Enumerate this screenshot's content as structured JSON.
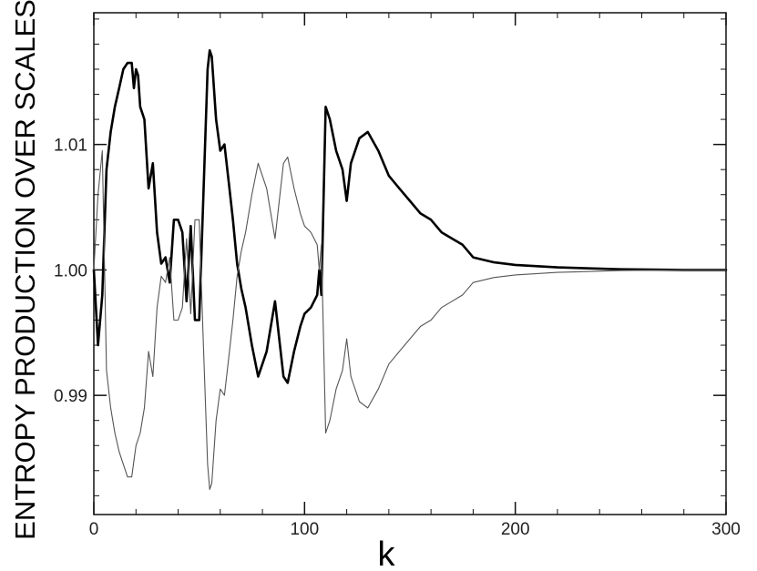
{
  "chart_data": {
    "type": "line",
    "title": "",
    "xlabel": "k",
    "ylabel": "ENTROPY PRODUCTION OVER SCALES",
    "xlim": [
      0,
      300
    ],
    "ylim": [
      0.9805,
      1.0205
    ],
    "x_ticks": [
      0,
      100,
      200,
      300
    ],
    "x_tick_labels": [
      "0",
      "100",
      "200",
      "300"
    ],
    "y_ticks": [
      0.99,
      1.0,
      1.01
    ],
    "y_tick_labels": [
      "0.99",
      "1.00",
      "1.01"
    ],
    "grid": false,
    "legend": "none",
    "series": [
      {
        "style": "thick",
        "color": "#000000",
        "x": [
          0,
          2,
          4,
          6,
          8,
          10,
          12,
          14,
          16,
          18,
          19,
          20,
          21,
          22,
          24,
          26,
          28,
          30,
          32,
          34,
          36,
          38,
          40,
          42,
          44,
          46,
          48,
          50,
          52,
          54,
          55,
          56,
          58,
          60,
          62,
          64,
          66,
          68,
          70,
          72,
          75,
          78,
          82,
          86,
          90,
          92,
          95,
          98,
          100,
          103,
          106,
          107,
          108,
          110,
          112,
          115,
          118,
          120,
          122,
          126,
          130,
          135,
          140,
          145,
          150,
          155,
          160,
          165,
          170,
          175,
          180,
          190,
          200,
          220,
          250,
          280,
          300
        ],
        "y": [
          1.0,
          0.994,
          0.998,
          1.008,
          1.011,
          1.013,
          1.0145,
          1.016,
          1.0165,
          1.0165,
          1.0145,
          1.016,
          1.0155,
          1.013,
          1.012,
          1.0065,
          1.0085,
          1.003,
          1.0005,
          1.001,
          0.999,
          1.004,
          1.004,
          1.003,
          0.9975,
          1.0035,
          0.996,
          0.996,
          1.006,
          1.016,
          1.0175,
          1.017,
          1.012,
          1.0095,
          1.01,
          1.007,
          1.004,
          1.0005,
          0.9985,
          0.997,
          0.994,
          0.9915,
          0.9935,
          0.9975,
          0.9915,
          0.991,
          0.9935,
          0.9955,
          0.9965,
          0.997,
          0.998,
          1.0,
          0.998,
          1.013,
          1.012,
          1.0095,
          1.008,
          1.0055,
          1.0085,
          1.0105,
          1.011,
          1.0095,
          1.0075,
          1.0065,
          1.0055,
          1.0045,
          1.004,
          1.003,
          1.0025,
          1.002,
          1.001,
          1.0006,
          1.0004,
          1.0002,
          1.00005,
          1.0,
          1.0
        ]
      },
      {
        "style": "thin",
        "color": "#555555",
        "x": [
          0,
          2,
          4,
          6,
          8,
          10,
          12,
          14,
          16,
          18,
          20,
          22,
          24,
          26,
          28,
          30,
          32,
          34,
          36,
          38,
          40,
          42,
          44,
          46,
          48,
          50,
          52,
          54,
          55,
          56,
          58,
          60,
          62,
          64,
          66,
          68,
          70,
          72,
          75,
          78,
          82,
          86,
          90,
          92,
          95,
          98,
          100,
          103,
          106,
          107,
          108,
          110,
          112,
          115,
          118,
          120,
          122,
          126,
          130,
          135,
          140,
          145,
          150,
          155,
          160,
          165,
          170,
          175,
          180,
          190,
          200,
          220,
          250,
          280,
          300
        ],
        "y": [
          1.0,
          1.006,
          1.0095,
          0.992,
          0.989,
          0.987,
          0.9855,
          0.9845,
          0.9835,
          0.9835,
          0.986,
          0.987,
          0.989,
          0.9935,
          0.9915,
          0.997,
          0.9995,
          0.999,
          1.001,
          0.996,
          0.996,
          0.997,
          1.0025,
          0.9965,
          1.004,
          1.004,
          0.994,
          0.9845,
          0.9825,
          0.983,
          0.988,
          0.9905,
          0.99,
          0.993,
          0.996,
          0.9995,
          1.0015,
          1.003,
          1.006,
          1.0085,
          1.0065,
          1.0025,
          1.0085,
          1.009,
          1.0065,
          1.0045,
          1.0035,
          1.003,
          1.002,
          1.0,
          1.002,
          0.987,
          0.988,
          0.9905,
          0.992,
          0.9945,
          0.9915,
          0.9895,
          0.989,
          0.9905,
          0.9925,
          0.9935,
          0.9945,
          0.9955,
          0.996,
          0.997,
          0.9975,
          0.998,
          0.999,
          0.9994,
          0.9996,
          0.9998,
          0.99995,
          1.0,
          1.0
        ]
      }
    ]
  }
}
